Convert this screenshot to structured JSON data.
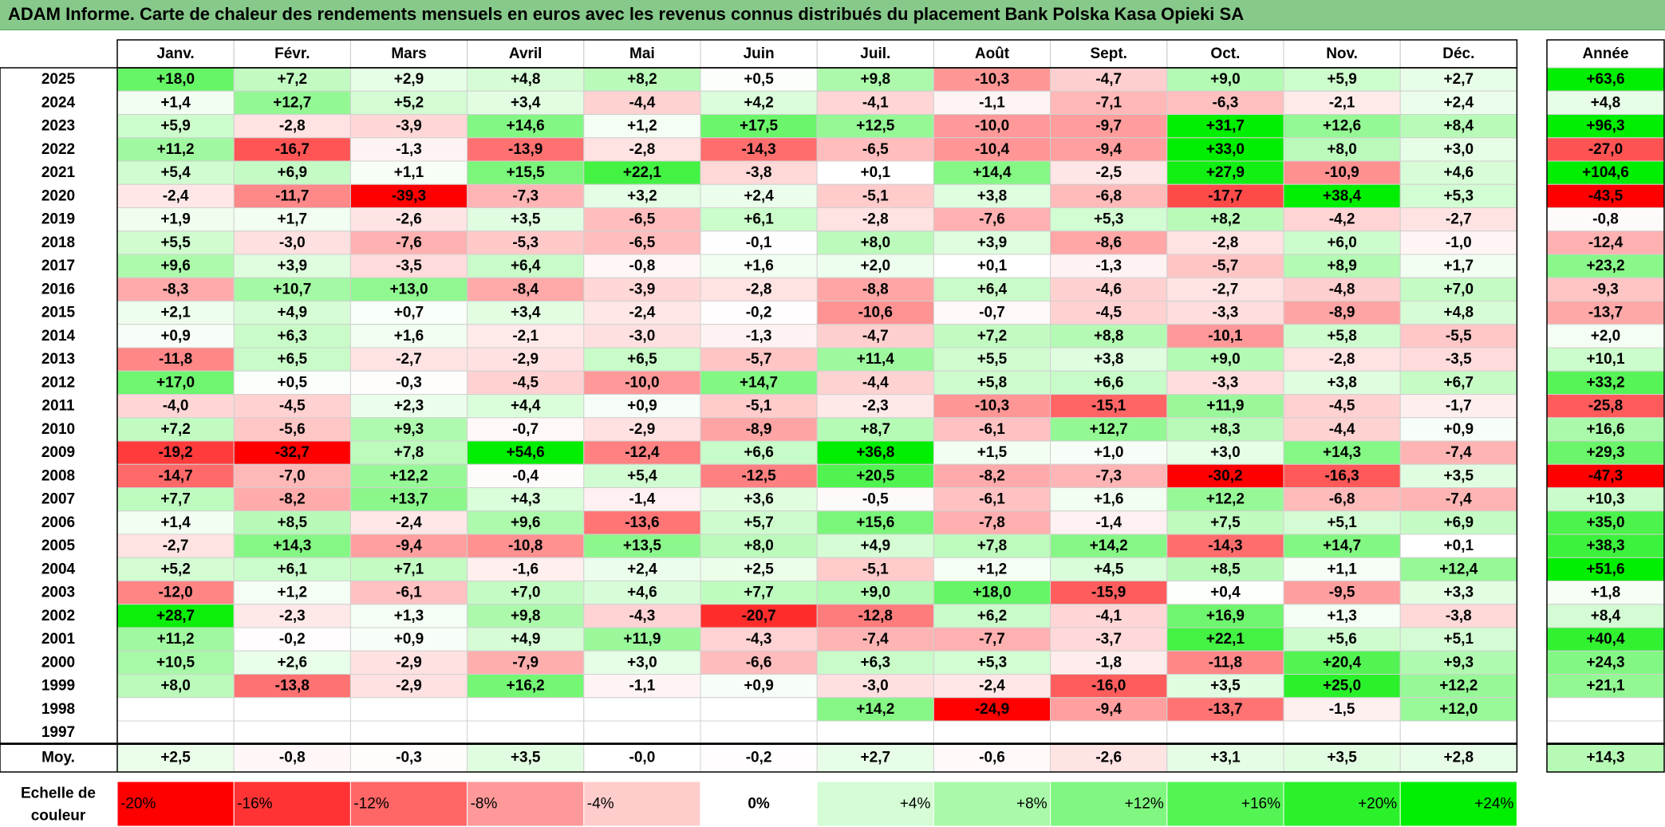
{
  "title": "ADAM Informe. Carte de chaleur des rendements mensuels en euros avec les revenus connus distribués du placement Bank Polska Kasa Opieki SA",
  "chart_data": {
    "type": "heatmap",
    "title": "ADAM Informe. Carte de chaleur des rendements mensuels en euros avec les revenus connus distribués du placement Bank Polska Kasa Opieki SA",
    "months": [
      "Janv.",
      "Févr.",
      "Mars",
      "Avril",
      "Mai",
      "Juin",
      "Juil.",
      "Août",
      "Sept.",
      "Oct.",
      "Nov.",
      "Déc."
    ],
    "year_header": "Année",
    "avg_label": "Moy.",
    "rows": [
      {
        "year": "2025",
        "values": [
          "+18,0",
          "+7,2",
          "+2,9",
          "+4,8",
          "+8,2",
          "+0,5",
          "+9,8",
          "-10,3",
          "-4,7",
          "+9,0",
          "+5,9",
          "+2,7"
        ],
        "annual": "+63,6"
      },
      {
        "year": "2024",
        "values": [
          "+1,4",
          "+12,7",
          "+5,2",
          "+3,4",
          "-4,4",
          "+4,2",
          "-4,1",
          "-1,1",
          "-7,1",
          "-6,3",
          "-2,1",
          "+2,4"
        ],
        "annual": "+4,8"
      },
      {
        "year": "2023",
        "values": [
          "+5,9",
          "-2,8",
          "-3,9",
          "+14,6",
          "+1,2",
          "+17,5",
          "+12,5",
          "-10,0",
          "-9,7",
          "+31,7",
          "+12,6",
          "+8,4"
        ],
        "annual": "+96,3"
      },
      {
        "year": "2022",
        "values": [
          "+11,2",
          "-16,7",
          "-1,3",
          "-13,9",
          "-2,8",
          "-14,3",
          "-6,5",
          "-10,4",
          "-9,4",
          "+33,0",
          "+8,0",
          "+3,0"
        ],
        "annual": "-27,0"
      },
      {
        "year": "2021",
        "values": [
          "+5,4",
          "+6,9",
          "+1,1",
          "+15,5",
          "+22,1",
          "-3,8",
          "+0,1",
          "+14,4",
          "-2,5",
          "+27,9",
          "-10,9",
          "+4,6"
        ],
        "annual": "+104,6"
      },
      {
        "year": "2020",
        "values": [
          "-2,4",
          "-11,7",
          "-39,3",
          "-7,3",
          "+3,2",
          "+2,4",
          "-5,1",
          "+3,8",
          "-6,8",
          "-17,7",
          "+38,4",
          "+5,3"
        ],
        "annual": "-43,5"
      },
      {
        "year": "2019",
        "values": [
          "+1,9",
          "+1,7",
          "-2,6",
          "+3,5",
          "-6,5",
          "+6,1",
          "-2,8",
          "-7,6",
          "+5,3",
          "+8,2",
          "-4,2",
          "-2,7"
        ],
        "annual": "-0,8"
      },
      {
        "year": "2018",
        "values": [
          "+5,5",
          "-3,0",
          "-7,6",
          "-5,3",
          "-6,5",
          "-0,1",
          "+8,0",
          "+3,9",
          "-8,6",
          "-2,8",
          "+6,0",
          "-1,0"
        ],
        "annual": "-12,4"
      },
      {
        "year": "2017",
        "values": [
          "+9,6",
          "+3,9",
          "-3,5",
          "+6,4",
          "-0,8",
          "+1,6",
          "+2,0",
          "+0,1",
          "-1,3",
          "-5,7",
          "+8,9",
          "+1,7"
        ],
        "annual": "+23,2"
      },
      {
        "year": "2016",
        "values": [
          "-8,3",
          "+10,7",
          "+13,0",
          "-8,4",
          "-3,9",
          "-2,8",
          "-8,8",
          "+6,4",
          "-4,6",
          "-2,7",
          "-4,8",
          "+7,0"
        ],
        "annual": "-9,3"
      },
      {
        "year": "2015",
        "values": [
          "+2,1",
          "+4,9",
          "+0,7",
          "+3,4",
          "-2,4",
          "-0,2",
          "-10,6",
          "-0,7",
          "-4,5",
          "-3,3",
          "-8,9",
          "+4,8"
        ],
        "annual": "-13,7"
      },
      {
        "year": "2014",
        "values": [
          "+0,9",
          "+6,3",
          "+1,6",
          "-2,1",
          "-3,0",
          "-1,3",
          "-4,7",
          "+7,2",
          "+8,8",
          "-10,1",
          "+5,8",
          "-5,5"
        ],
        "annual": "+2,0"
      },
      {
        "year": "2013",
        "values": [
          "-11,8",
          "+6,5",
          "-2,7",
          "-2,9",
          "+6,5",
          "-5,7",
          "+11,4",
          "+5,5",
          "+3,8",
          "+9,0",
          "-2,8",
          "-3,5"
        ],
        "annual": "+10,1"
      },
      {
        "year": "2012",
        "values": [
          "+17,0",
          "+0,5",
          "-0,3",
          "-4,5",
          "-10,0",
          "+14,7",
          "-4,4",
          "+5,8",
          "+6,6",
          "-3,3",
          "+3,8",
          "+6,7"
        ],
        "annual": "+33,2"
      },
      {
        "year": "2011",
        "values": [
          "-4,0",
          "-4,5",
          "+2,3",
          "+4,4",
          "+0,9",
          "-5,1",
          "-2,3",
          "-10,3",
          "-15,1",
          "+11,9",
          "-4,5",
          "-1,7"
        ],
        "annual": "-25,8"
      },
      {
        "year": "2010",
        "values": [
          "+7,2",
          "-5,6",
          "+9,3",
          "-0,7",
          "-2,9",
          "-8,9",
          "+8,7",
          "-6,1",
          "+12,7",
          "+8,3",
          "-4,4",
          "+0,9"
        ],
        "annual": "+16,6"
      },
      {
        "year": "2009",
        "values": [
          "-19,2",
          "-32,7",
          "+7,8",
          "+54,6",
          "-12,4",
          "+6,6",
          "+36,8",
          "+1,5",
          "+1,0",
          "+3,0",
          "+14,3",
          "-7,4"
        ],
        "annual": "+29,3"
      },
      {
        "year": "2008",
        "values": [
          "-14,7",
          "-7,0",
          "+12,2",
          "-0,4",
          "+5,4",
          "-12,5",
          "+20,5",
          "-8,2",
          "-7,3",
          "-30,2",
          "-16,3",
          "+3,5"
        ],
        "annual": "-47,3"
      },
      {
        "year": "2007",
        "values": [
          "+7,7",
          "-8,2",
          "+13,7",
          "+4,3",
          "-1,4",
          "+3,6",
          "-0,5",
          "-6,1",
          "+1,6",
          "+12,2",
          "-6,8",
          "-7,4"
        ],
        "annual": "+10,3"
      },
      {
        "year": "2006",
        "values": [
          "+1,4",
          "+8,5",
          "-2,4",
          "+9,6",
          "-13,6",
          "+5,7",
          "+15,6",
          "-7,8",
          "-1,4",
          "+7,5",
          "+5,1",
          "+6,9"
        ],
        "annual": "+35,0"
      },
      {
        "year": "2005",
        "values": [
          "-2,7",
          "+14,3",
          "-9,4",
          "-10,8",
          "+13,5",
          "+8,0",
          "+4,9",
          "+7,8",
          "+14,2",
          "-14,3",
          "+14,7",
          "+0,1"
        ],
        "annual": "+38,3"
      },
      {
        "year": "2004",
        "values": [
          "+5,2",
          "+6,1",
          "+7,1",
          "-1,6",
          "+2,4",
          "+2,5",
          "-5,1",
          "+1,2",
          "+4,5",
          "+8,5",
          "+1,1",
          "+12,4"
        ],
        "annual": "+51,6"
      },
      {
        "year": "2003",
        "values": [
          "-12,0",
          "+1,2",
          "-6,1",
          "+7,0",
          "+4,6",
          "+7,7",
          "+9,0",
          "+18,0",
          "-15,9",
          "+0,4",
          "-9,5",
          "+3,3"
        ],
        "annual": "+1,8"
      },
      {
        "year": "2002",
        "values": [
          "+28,7",
          "-2,3",
          "+1,3",
          "+9,8",
          "-4,3",
          "-20,7",
          "-12,8",
          "+6,2",
          "-4,1",
          "+16,9",
          "+1,3",
          "-3,8"
        ],
        "annual": "+8,4"
      },
      {
        "year": "2001",
        "values": [
          "+11,2",
          "-0,2",
          "+0,9",
          "+4,9",
          "+11,9",
          "-4,3",
          "-7,4",
          "-7,7",
          "-3,7",
          "+22,1",
          "+5,6",
          "+5,1"
        ],
        "annual": "+40,4"
      },
      {
        "year": "2000",
        "values": [
          "+10,5",
          "+2,6",
          "-2,9",
          "-7,9",
          "+3,0",
          "-6,6",
          "+6,3",
          "+5,3",
          "-1,8",
          "-11,8",
          "+20,4",
          "+9,3"
        ],
        "annual": "+24,3"
      },
      {
        "year": "1999",
        "values": [
          "+8,0",
          "-13,8",
          "-2,9",
          "+16,2",
          "-1,1",
          "+0,9",
          "-3,0",
          "-2,4",
          "-16,0",
          "+3,5",
          "+25,0",
          "+12,2"
        ],
        "annual": "+21,1"
      },
      {
        "year": "1998",
        "values": [
          "",
          "",
          "",
          "",
          "",
          "",
          "+14,2",
          "-24,9",
          "-9,4",
          "-13,7",
          "-1,5",
          "+12,0"
        ],
        "annual": ""
      },
      {
        "year": "1997",
        "values": [
          "",
          "",
          "",
          "",
          "",
          "",
          "",
          "",
          "",
          "",
          "",
          ""
        ],
        "annual": ""
      }
    ],
    "averages": [
      "+2,5",
      "-0,8",
      "-0,3",
      "+3,5",
      "-0,0",
      "-0,2",
      "+2,7",
      "-0,6",
      "-2,6",
      "+3,1",
      "+3,5",
      "+2,8"
    ],
    "annual_average": "+14,3",
    "scale_label": "Echelle de couleur",
    "scale": [
      {
        "label": "-20%",
        "value": -20
      },
      {
        "label": "-16%",
        "value": -16
      },
      {
        "label": "-12%",
        "value": -12
      },
      {
        "label": "-8%",
        "value": -8
      },
      {
        "label": "-4%",
        "value": -4
      },
      {
        "label": "0%",
        "value": 0
      },
      {
        "label": "+4%",
        "value": 4
      },
      {
        "label": "+8%",
        "value": 8
      },
      {
        "label": "+12%",
        "value": 12
      },
      {
        "label": "+16%",
        "value": 16
      },
      {
        "label": "+20%",
        "value": 20
      },
      {
        "label": "+24%",
        "value": 24
      }
    ],
    "colors": {
      "negative_max": "#ff0000",
      "neutral": "#ffffff",
      "positive_max": "#00ee00"
    }
  }
}
